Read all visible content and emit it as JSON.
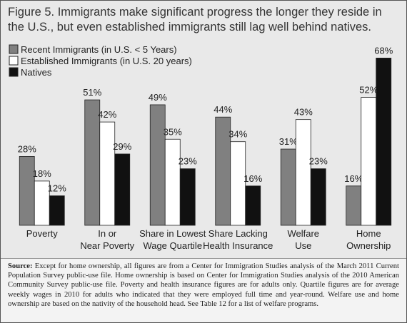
{
  "chart_data": {
    "type": "bar",
    "title": "Figure 5. Immigrants make significant progress the longer they reside in the U.S., but even established immigrants still lag well behind natives.",
    "categories": [
      [
        "Poverty"
      ],
      [
        "In or",
        "Near Poverty"
      ],
      [
        "Share in Lowest",
        "Wage Quartile"
      ],
      [
        "Share Lacking",
        "Health Insurance"
      ],
      [
        "Welfare",
        "Use"
      ],
      [
        "Home",
        "Ownership"
      ]
    ],
    "series": [
      {
        "name": "Recent Immigrants (in U.S. < 5 Years)",
        "color": "#808080",
        "values": [
          28,
          51,
          49,
          44,
          31,
          16
        ],
        "value_labels": [
          "28%",
          "51%",
          "49%",
          "44%",
          "31%",
          "16%"
        ]
      },
      {
        "name": "Established Immigrants (in U.S. 20 years)",
        "color": "#ffffff",
        "values": [
          18,
          42,
          35,
          34,
          43,
          52
        ],
        "value_labels": [
          "18%",
          "42%",
          "35%",
          "34%",
          "43%",
          "52%"
        ]
      },
      {
        "name": "Natives",
        "color": "#111111",
        "values": [
          12,
          29,
          23,
          16,
          23,
          68
        ],
        "value_labels": [
          "12%",
          "29%",
          "23%",
          "16%",
          "23%",
          "68%"
        ]
      }
    ],
    "legend": "top-left",
    "source_label": "Source:",
    "source": "Except for home ownership, all figures are from a Center for Immigration Studies analysis of the March 2011 Current Population Survey public-use file. Home ownership is based on Center for Immigration Studies analysis of the 2010 American Community Survey public-use file. Poverty and health insurance figures are for adults only. Quartile figures are for average weekly wages in 2010 for adults who indicated that they were employed full time and year-round. Welfare use and home ownership are based on the nativity of the household head. See Table 12 for a list of welfare programs."
  }
}
